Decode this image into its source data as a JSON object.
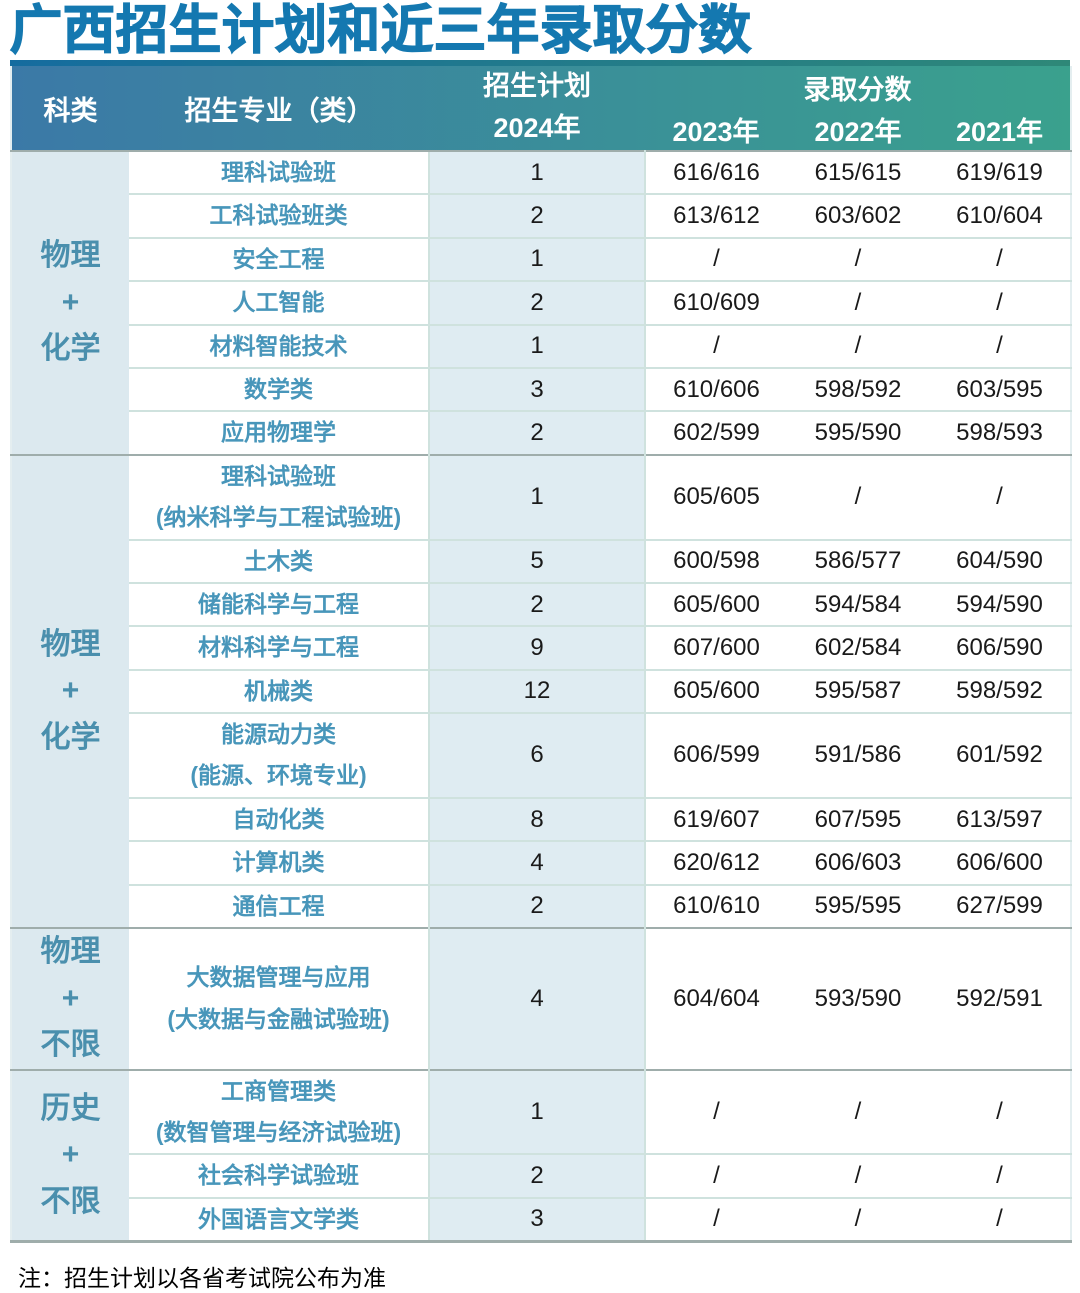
{
  "title": "广西招生计划和近三年录取分数",
  "note": "注：招生计划以各省考试院公布为准",
  "colors": {
    "title_text": "#1478b0",
    "header_gradient_left": "#3b79a7",
    "header_gradient_right": "#3aa18d",
    "header_top_bar_left": "#156c9f",
    "header_top_bar_right": "#2e8878",
    "category_cell_bg": "#dce9ef",
    "category_text": "#4a8fad",
    "major_text": "#4896ba",
    "plan_cell_bg": "#dfecf2",
    "body_text": "#1a1a1a",
    "row_divider": "#cfe2de",
    "group_divider": "#9fadab"
  },
  "header": {
    "col_category": "科类",
    "col_major": "招生专业（类）",
    "col_plan": "招生计划\n2024年",
    "col_scores": "录取分数",
    "years": [
      "2023年",
      "2022年",
      "2021年"
    ]
  },
  "groups": [
    {
      "category": "物理\n+\n化学",
      "rows": [
        {
          "major": "理科试验班",
          "plan": "1",
          "scores": [
            "616/616",
            "615/615",
            "619/619"
          ]
        },
        {
          "major": "工科试验班类",
          "plan": "2",
          "scores": [
            "613/612",
            "603/602",
            "610/604"
          ]
        },
        {
          "major": "安全工程",
          "plan": "1",
          "scores": [
            "/",
            "/",
            "/"
          ]
        },
        {
          "major": "人工智能",
          "plan": "2",
          "scores": [
            "610/609",
            "/",
            "/"
          ]
        },
        {
          "major": "材料智能技术",
          "plan": "1",
          "scores": [
            "/",
            "/",
            "/"
          ]
        },
        {
          "major": "数学类",
          "plan": "3",
          "scores": [
            "610/606",
            "598/592",
            "603/595"
          ]
        },
        {
          "major": "应用物理学",
          "plan": "2",
          "scores": [
            "602/599",
            "595/590",
            "598/593"
          ]
        }
      ]
    },
    {
      "category": "物理\n+\n化学",
      "rows": [
        {
          "major": "理科试验班\n(纳米科学与工程试验班)",
          "plan": "1",
          "scores": [
            "605/605",
            "/",
            "/"
          ]
        },
        {
          "major": "土木类",
          "plan": "5",
          "scores": [
            "600/598",
            "586/577",
            "604/590"
          ]
        },
        {
          "major": "储能科学与工程",
          "plan": "2",
          "scores": [
            "605/600",
            "594/584",
            "594/590"
          ]
        },
        {
          "major": "材料科学与工程",
          "plan": "9",
          "scores": [
            "607/600",
            "602/584",
            "606/590"
          ]
        },
        {
          "major": "机械类",
          "plan": "12",
          "scores": [
            "605/600",
            "595/587",
            "598/592"
          ]
        },
        {
          "major": "能源动力类\n(能源、环境专业)",
          "plan": "6",
          "scores": [
            "606/599",
            "591/586",
            "601/592"
          ]
        },
        {
          "major": "自动化类",
          "plan": "8",
          "scores": [
            "619/607",
            "607/595",
            "613/597"
          ]
        },
        {
          "major": "计算机类",
          "plan": "4",
          "scores": [
            "620/612",
            "606/603",
            "606/600"
          ]
        },
        {
          "major": "通信工程",
          "plan": "2",
          "scores": [
            "610/610",
            "595/595",
            "627/599"
          ]
        }
      ]
    },
    {
      "category": "物理\n+\n不限",
      "rows": [
        {
          "major": "大数据管理与应用\n(大数据与金融试验班)",
          "plan": "4",
          "scores": [
            "604/604",
            "593/590",
            "592/591"
          ]
        }
      ]
    },
    {
      "category": "历史\n+\n不限",
      "rows": [
        {
          "major": "工商管理类\n(数智管理与经济试验班)",
          "plan": "1",
          "scores": [
            "/",
            "/",
            "/"
          ]
        },
        {
          "major": "社会科学试验班",
          "plan": "2",
          "scores": [
            "/",
            "/",
            "/"
          ]
        },
        {
          "major": "外国语言文学类",
          "plan": "3",
          "scores": [
            "/",
            "/",
            "/"
          ]
        }
      ]
    }
  ]
}
